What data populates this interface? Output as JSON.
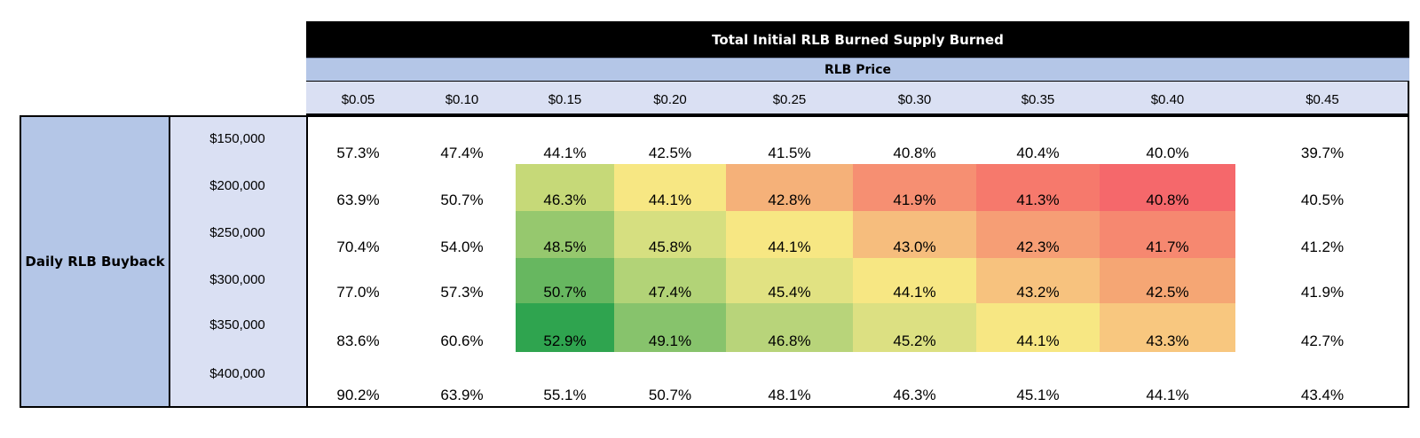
{
  "title": "Total Initial RLB Burned Supply Burned",
  "column_group_label": "RLB Price",
  "row_group_label": "Daily RLB Buyback",
  "chart_data": {
    "type": "table",
    "title": "Total Initial RLB Burned Supply Burned",
    "x_label": "RLB Price",
    "y_label": "Daily RLB Buyback",
    "columns": [
      "$0.05",
      "$0.10",
      "$0.15",
      "$0.20",
      "$0.25",
      "$0.30",
      "$0.35",
      "$0.40",
      "$0.45"
    ],
    "rows": [
      "$150,000",
      "$200,000",
      "$250,000",
      "$300,000",
      "$350,000",
      "$400,000"
    ],
    "values": [
      [
        "57.3%",
        "47.4%",
        "44.1%",
        "42.5%",
        "41.5%",
        "40.8%",
        "40.4%",
        "40.0%",
        "39.7%"
      ],
      [
        "63.9%",
        "50.7%",
        "46.3%",
        "44.1%",
        "42.8%",
        "41.9%",
        "41.3%",
        "40.8%",
        "40.5%"
      ],
      [
        "70.4%",
        "54.0%",
        "48.5%",
        "45.8%",
        "44.1%",
        "43.0%",
        "42.3%",
        "41.7%",
        "41.2%"
      ],
      [
        "77.0%",
        "57.3%",
        "50.7%",
        "47.4%",
        "45.4%",
        "44.1%",
        "43.2%",
        "42.5%",
        "41.9%"
      ],
      [
        "83.6%",
        "60.6%",
        "52.9%",
        "49.1%",
        "46.8%",
        "45.2%",
        "44.1%",
        "43.3%",
        "42.7%"
      ],
      [
        "90.2%",
        "63.9%",
        "55.1%",
        "50.7%",
        "48.1%",
        "46.3%",
        "45.1%",
        "44.1%",
        "43.4%"
      ]
    ],
    "heatmap_fill": [
      [
        null,
        null,
        null,
        null,
        null,
        null,
        null,
        null,
        null
      ],
      [
        null,
        null,
        "#c6d978",
        "#f7e783",
        "#f5b179",
        "#f68f72",
        "#f6796c",
        "#f5686b",
        null
      ],
      [
        null,
        null,
        "#96c86e",
        "#d6df80",
        "#f7e783",
        "#f6bd7d",
        "#f69e75",
        "#f68870",
        null
      ],
      [
        null,
        null,
        "#67b760",
        "#b2d377",
        "#e1e282",
        "#f7e783",
        "#f7c27e",
        "#f5a674",
        null
      ],
      [
        null,
        null,
        "#2fa44f",
        "#87c36c",
        "#b8d47a",
        "#dce082",
        "#f7e783",
        "#f8c77f",
        null
      ],
      [
        null,
        null,
        null,
        null,
        null,
        null,
        null,
        null,
        null
      ]
    ]
  }
}
